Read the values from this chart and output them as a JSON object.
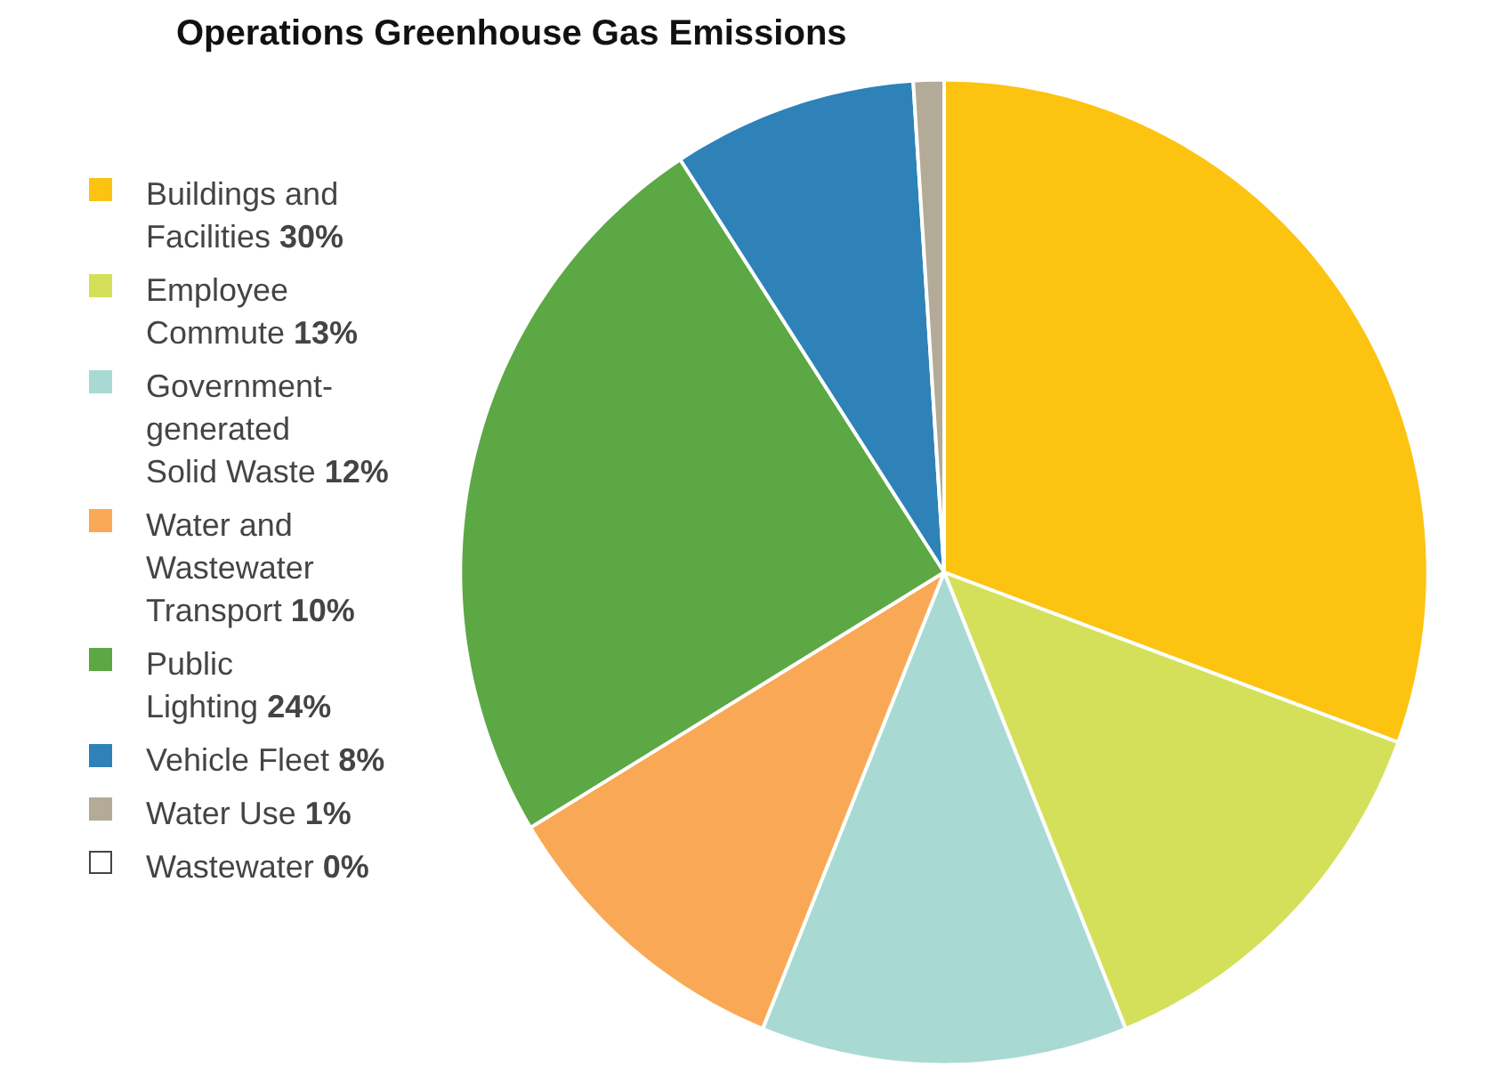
{
  "chart_data": {
    "type": "pie",
    "title": "Operations Greenhouse Gas Emissions",
    "categories": [
      "Buildings and Facilities",
      "Employee Commute",
      "Government-generated Solid Waste",
      "Water and Wastewater Transport",
      "Public Lighting",
      "Vehicle Fleet",
      "Water Use",
      "Wastewater"
    ],
    "values": [
      30,
      13,
      12,
      10,
      24,
      8,
      1,
      0
    ],
    "value_labels": [
      "30%",
      "13%",
      "12%",
      "10%",
      "24%",
      "8%",
      "1%",
      "0%"
    ],
    "colors": [
      "#fdc311",
      "#d4e05a",
      "#a8dad3",
      "#f9a955",
      "#5ca845",
      "#2e82b8",
      "#b3ab98",
      "#ffffff"
    ],
    "legend": "left"
  }
}
